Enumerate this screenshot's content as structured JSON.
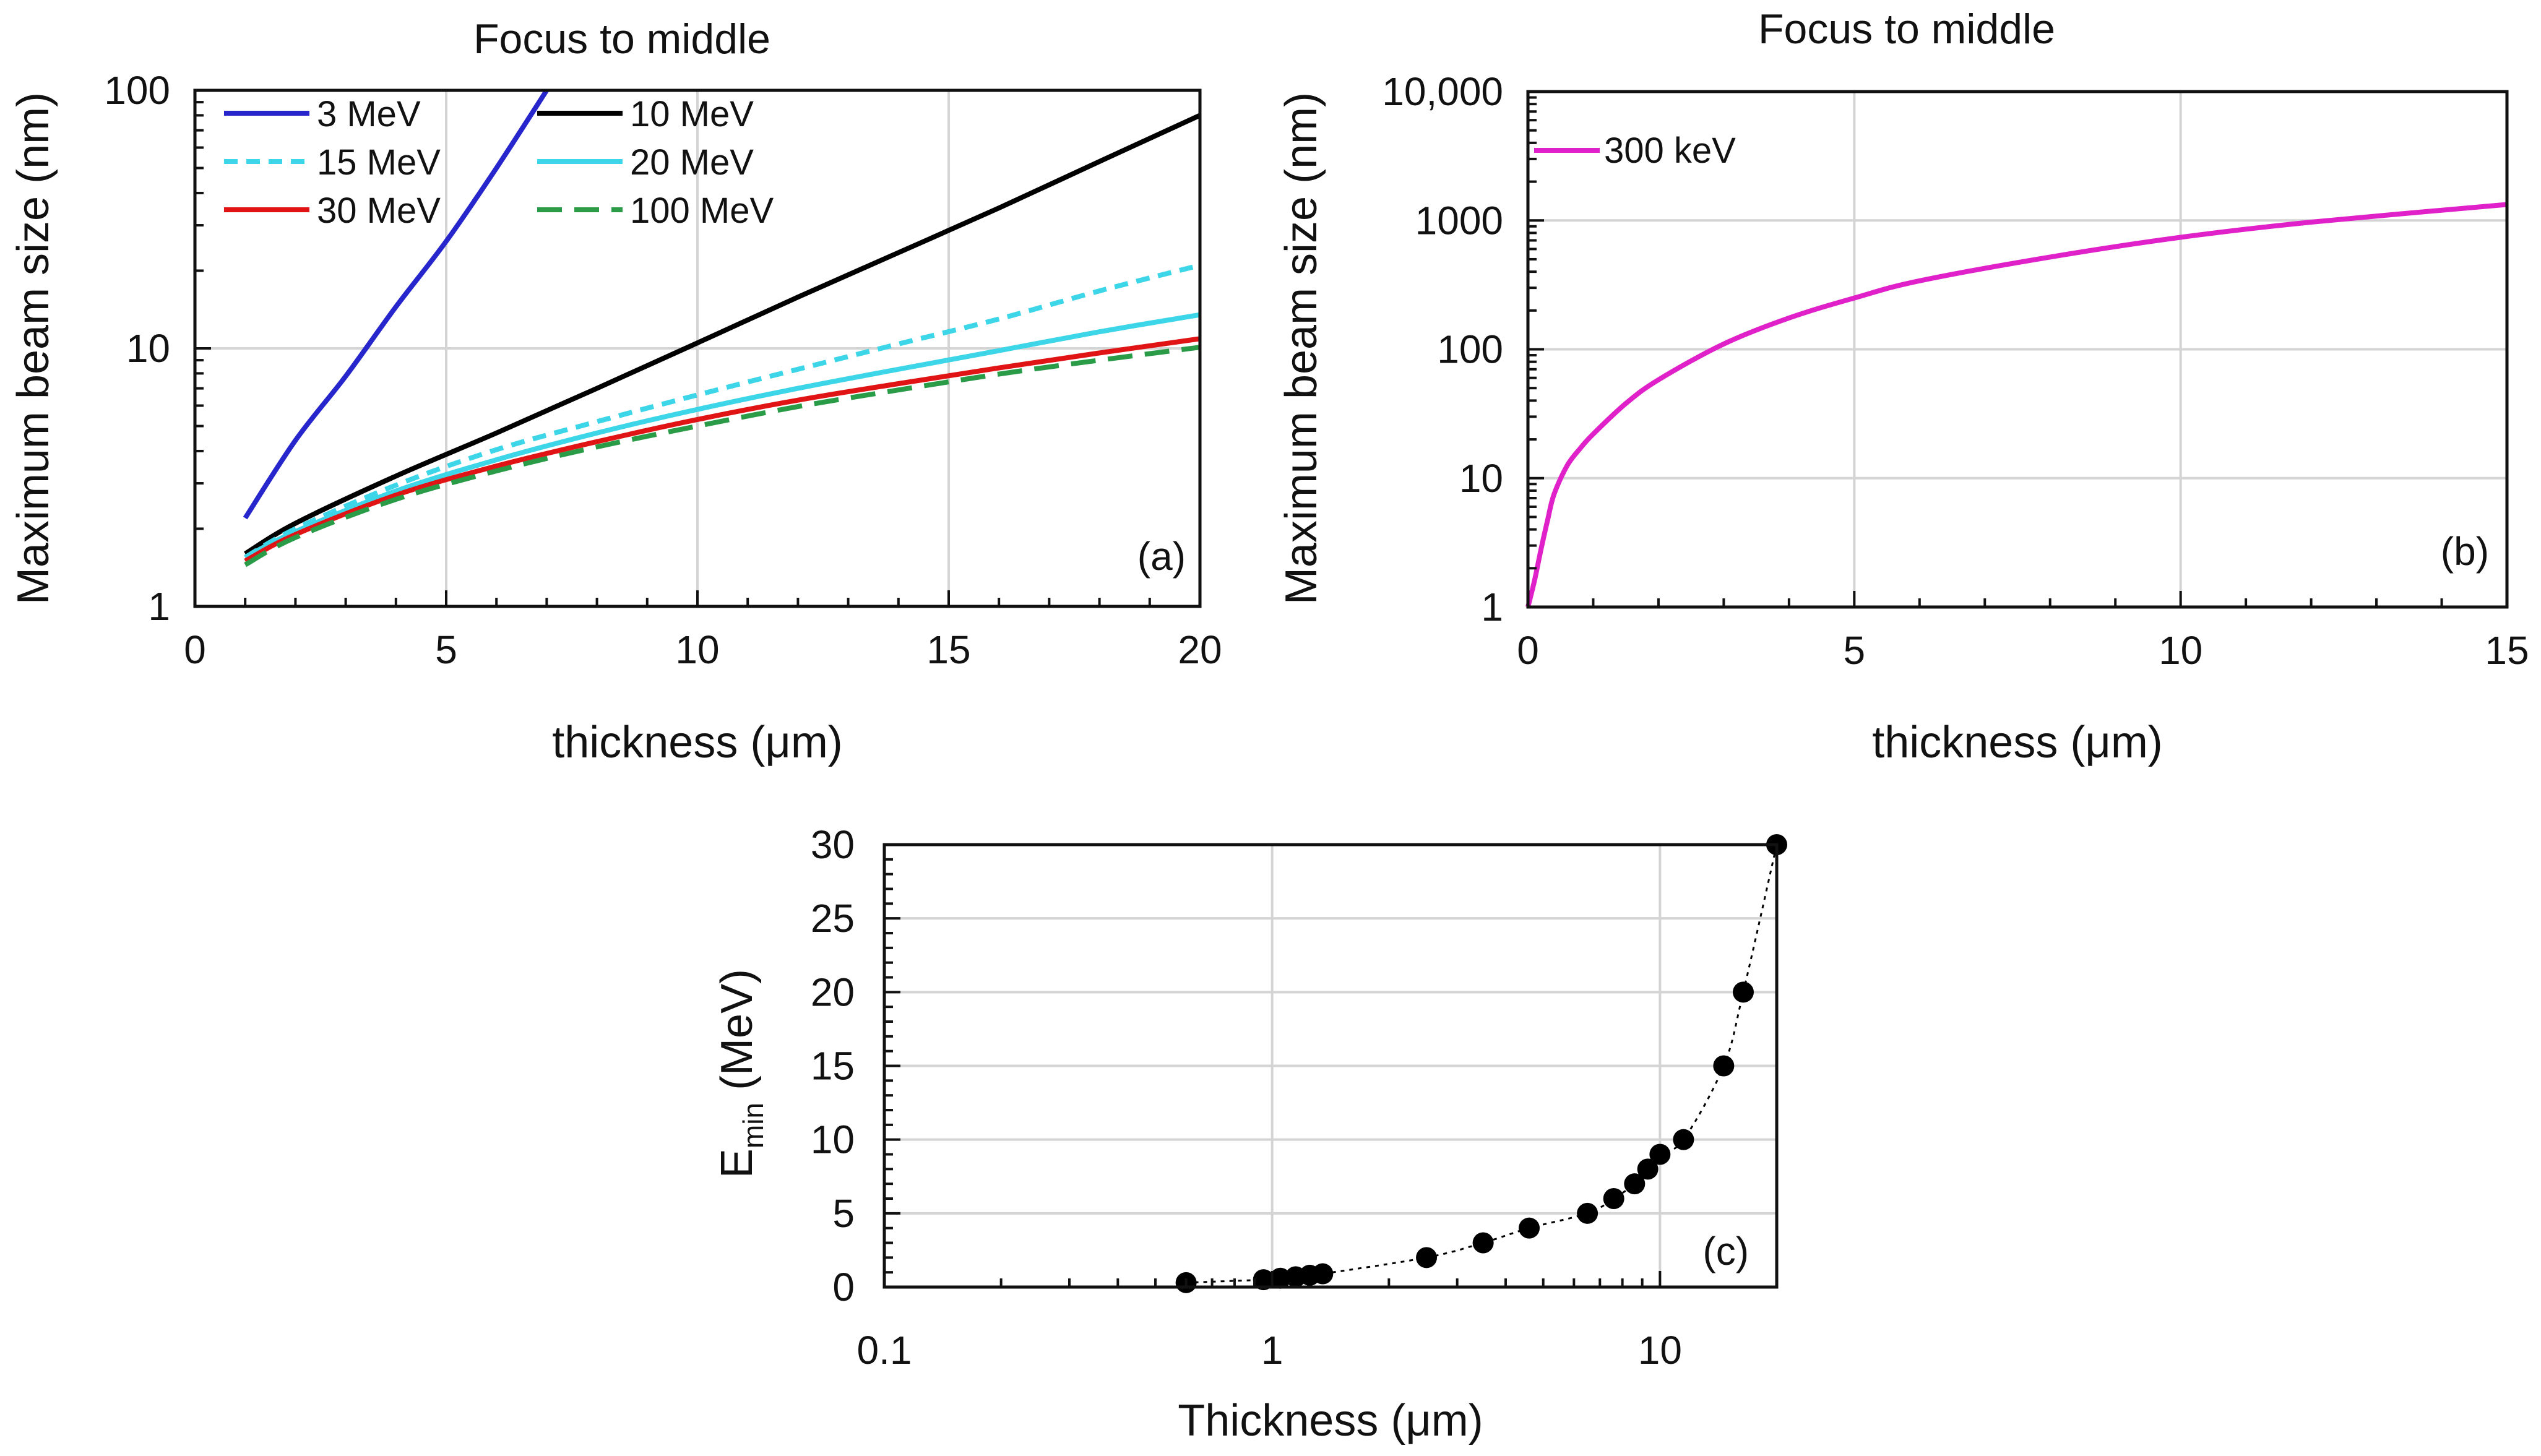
{
  "chart_data": [
    {
      "id": "a",
      "type": "line",
      "title": "Focus to middle",
      "xlabel": "thickness (μm)",
      "ylabel": "Maximum beam size (nm)",
      "xscale": "linear",
      "yscale": "log",
      "xlim": [
        0,
        20
      ],
      "ylim": [
        1,
        100
      ],
      "xticks": [
        0,
        5,
        10,
        15,
        20
      ],
      "xtick_labels": [
        "0",
        "5",
        "10",
        "15",
        "20"
      ],
      "yticks": [
        1,
        10,
        100
      ],
      "ytick_labels": [
        "1",
        "10",
        "100"
      ],
      "grid": true,
      "legend_position": "top-left",
      "panel_label": "(a)",
      "series": [
        {
          "name": "3 MeV",
          "color": "#2626cc",
          "dash": "solid",
          "x": [
            1,
            2,
            3,
            4,
            5,
            6,
            7
          ],
          "y": [
            2.2,
            4.4,
            7.8,
            14.5,
            26,
            50,
            100
          ]
        },
        {
          "name": "10 MeV",
          "color": "#000000",
          "dash": "solid",
          "x": [
            1,
            2,
            4,
            6,
            8,
            10,
            12,
            14,
            16,
            18,
            20
          ],
          "y": [
            1.6,
            2.1,
            3.2,
            4.7,
            7,
            10.5,
            15.8,
            23.5,
            35,
            53,
            80
          ]
        },
        {
          "name": "15 MeV",
          "color": "#3dd6e8",
          "dash": "dashed",
          "x": [
            1,
            2,
            4,
            6,
            8,
            10,
            12,
            14,
            16,
            18,
            20
          ],
          "y": [
            1.55,
            2.0,
            2.95,
            4.05,
            5.2,
            6.6,
            8.3,
            10.4,
            13,
            16.7,
            21
          ]
        },
        {
          "name": "20 MeV",
          "color": "#3dd6e8",
          "dash": "solid",
          "x": [
            1,
            2,
            4,
            6,
            8,
            10,
            12,
            14,
            16,
            18,
            20
          ],
          "y": [
            1.55,
            1.95,
            2.8,
            3.7,
            4.7,
            5.8,
            7.0,
            8.3,
            9.8,
            11.6,
            13.5
          ]
        },
        {
          "name": "30 MeV",
          "color": "#e01414",
          "dash": "solid",
          "x": [
            1,
            2,
            4,
            6,
            8,
            10,
            12,
            14,
            16,
            18,
            20
          ],
          "y": [
            1.5,
            1.9,
            2.7,
            3.5,
            4.35,
            5.3,
            6.3,
            7.3,
            8.4,
            9.6,
            10.9
          ]
        },
        {
          "name": "100 MeV",
          "color": "#2a9c48",
          "dash": "long-dash",
          "x": [
            1,
            2,
            4,
            6,
            8,
            10,
            12,
            14,
            16,
            18,
            20
          ],
          "y": [
            1.45,
            1.85,
            2.6,
            3.35,
            4.15,
            5.0,
            5.95,
            6.9,
            7.95,
            9.0,
            10.1
          ]
        }
      ]
    },
    {
      "id": "b",
      "type": "line",
      "title": "Focus to middle",
      "xlabel": "thickness (μm)",
      "ylabel": "Maximum beam size (nm)",
      "xscale": "linear",
      "yscale": "log",
      "xlim": [
        0,
        15
      ],
      "ylim": [
        1,
        10000
      ],
      "xticks": [
        0,
        5,
        10,
        15
      ],
      "xtick_labels": [
        "0",
        "5",
        "10",
        "15"
      ],
      "yticks": [
        1,
        10,
        100,
        1000,
        10000
      ],
      "ytick_labels": [
        "1",
        "10",
        "100",
        "1000",
        "10,000"
      ],
      "grid": true,
      "legend_position": "top-left",
      "panel_label": "(b)",
      "series": [
        {
          "name": "300 keV",
          "color": "#e020c8",
          "dash": "solid",
          "x": [
            0,
            0.1,
            0.2,
            0.3,
            0.4,
            0.6,
            0.8,
            1,
            1.5,
            2,
            3,
            4,
            5,
            6,
            8,
            10,
            12,
            15
          ],
          "y": [
            1,
            1.6,
            2.8,
            4.7,
            7.5,
            12.5,
            17,
            22,
            38,
            58,
            110,
            175,
            250,
            340,
            520,
            740,
            970,
            1330
          ]
        }
      ]
    },
    {
      "id": "c",
      "type": "scatter",
      "title": "",
      "xlabel": "Thickness (μm)",
      "ylabel_main": "E",
      "ylabel_sub": "min",
      "ylabel_unit": " (MeV)",
      "xscale": "log",
      "yscale": "linear",
      "xlim": [
        0.1,
        20
      ],
      "ylim": [
        0,
        30
      ],
      "xticks": [
        0.1,
        1,
        10
      ],
      "xtick_labels": [
        "0.1",
        "1",
        "10"
      ],
      "yticks": [
        0,
        5,
        10,
        15,
        20,
        25,
        30
      ],
      "ytick_labels": [
        "0",
        "5",
        "10",
        "15",
        "20",
        "25",
        "30"
      ],
      "grid": true,
      "panel_label": "(c)",
      "series": [
        {
          "name": "Emin",
          "color": "#000000",
          "dash": "dotted",
          "x": [
            0.6,
            0.95,
            1.05,
            1.15,
            1.25,
            1.35,
            2.5,
            3.5,
            4.6,
            6.5,
            7.6,
            8.6,
            9.3,
            10.0,
            11.5,
            14.6,
            16.4,
            20
          ],
          "y": [
            0.3,
            0.5,
            0.6,
            0.7,
            0.8,
            0.9,
            2,
            3,
            4,
            5,
            6,
            7,
            8,
            9,
            10,
            15,
            20,
            30
          ]
        }
      ]
    }
  ]
}
